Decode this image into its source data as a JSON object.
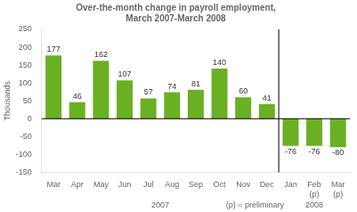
{
  "chart_data": {
    "type": "bar",
    "title": "Over-the-month change in payroll employment,\nMarch 2007-March 2008",
    "categories": [
      "Mar",
      "Apr",
      "May",
      "Jun",
      "Jul",
      "Aug",
      "Sep",
      "Oct",
      "Nov",
      "Dec",
      "Jan",
      "Feb\n(p)",
      "Mar\n(p)"
    ],
    "values": [
      177,
      46,
      162,
      107,
      57,
      74,
      81,
      140,
      60,
      41,
      -76,
      -76,
      -80
    ],
    "color": "#6ab023",
    "ylabel": "Thousands",
    "ylim": [
      -150,
      250
    ],
    "yticks": [
      -150,
      -100,
      -50,
      0,
      50,
      100,
      150,
      200,
      250
    ],
    "grid": false,
    "data_labels": true,
    "annotations": [
      "2007",
      "(p) = preliminary",
      "2008"
    ]
  }
}
